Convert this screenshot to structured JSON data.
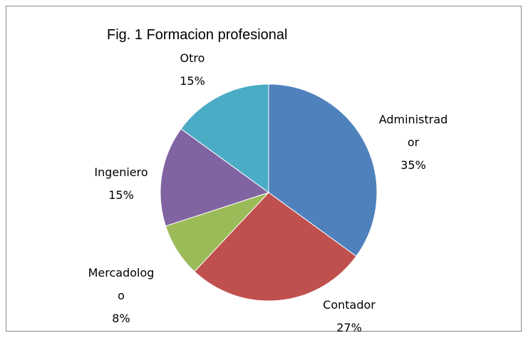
{
  "chart_data": {
    "type": "pie",
    "title": "Fig. 1 Formacion profesional",
    "categories": [
      "Administrador",
      "Contador",
      "Mercadologo",
      "Ingeniero",
      "Otro"
    ],
    "values": [
      35,
      27,
      8,
      15,
      15
    ],
    "value_labels": [
      "35%",
      "27%",
      "8%",
      "15%",
      "15%"
    ],
    "colors": [
      "#4f81bd",
      "#c0504d",
      "#9bbb59",
      "#8064a2",
      "#4bacc6"
    ]
  }
}
